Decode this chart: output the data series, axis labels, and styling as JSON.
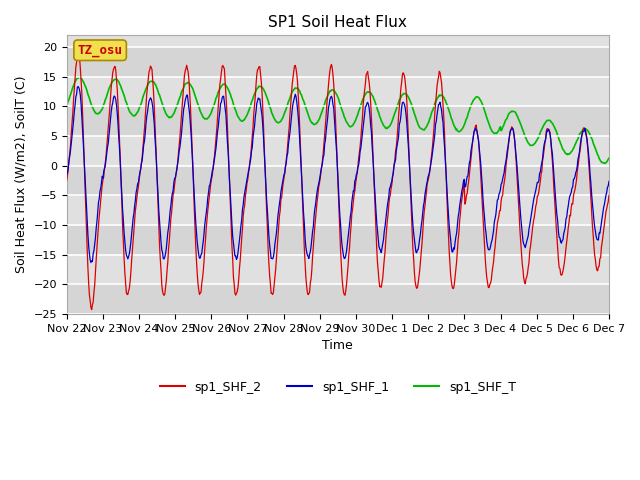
{
  "title": "SP1 Soil Heat Flux",
  "xlabel": "Time",
  "ylabel": "Soil Heat Flux (W/m2), SoilT (C)",
  "ylim": [
    -25,
    22
  ],
  "yticks": [
    -25,
    -20,
    -15,
    -10,
    -5,
    0,
    5,
    10,
    15,
    20
  ],
  "x_tick_labels": [
    "Nov 22",
    "Nov 23",
    "Nov 24",
    "Nov 25",
    "Nov 26",
    "Nov 27",
    "Nov 28",
    "Nov 29",
    "Nov 30",
    "Dec 1",
    "Dec 2",
    "Dec 3",
    "Dec 4",
    "Dec 5",
    "Dec 6",
    "Dec 7"
  ],
  "annotation_text": "TZ_osu",
  "annotation_color": "#cc0000",
  "annotation_bg": "#f0e050",
  "annotation_edge": "#aa8800",
  "legend_labels": [
    "sp1_SHF_2",
    "sp1_SHF_1",
    "sp1_SHF_T"
  ],
  "line_colors": [
    "#dd0000",
    "#0000cc",
    "#00bb00"
  ],
  "fig_bg": "#ffffff",
  "plot_bg": "#e0e0e0",
  "grid_color": "#ffffff",
  "title_fontsize": 11,
  "axis_fontsize": 9,
  "tick_fontsize": 8,
  "legend_fontsize": 9
}
